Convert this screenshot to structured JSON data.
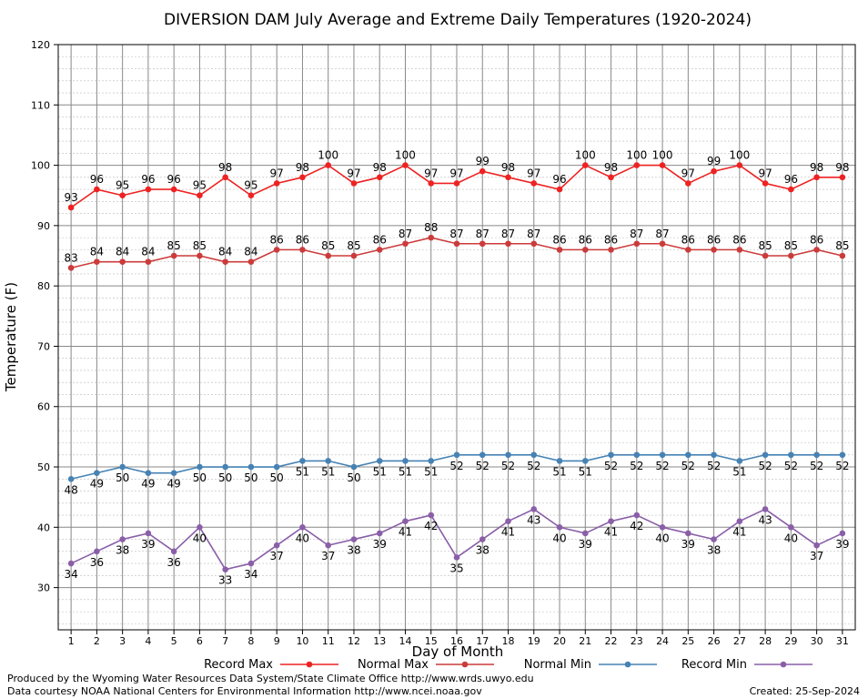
{
  "chart_data": {
    "type": "line",
    "title": "DIVERSION DAM July Average and Extreme Daily Temperatures (1920-2024)",
    "xlabel": "Day of Month",
    "ylabel": "Temperature (F)",
    "xlim": [
      0.5,
      31.5
    ],
    "ylim": [
      23,
      120
    ],
    "yticks": [
      30,
      40,
      50,
      60,
      70,
      80,
      90,
      100,
      110,
      120
    ],
    "x": [
      1,
      2,
      3,
      4,
      5,
      6,
      7,
      8,
      9,
      10,
      11,
      12,
      13,
      14,
      15,
      16,
      17,
      18,
      19,
      20,
      21,
      22,
      23,
      24,
      25,
      26,
      27,
      28,
      29,
      30,
      31
    ],
    "grid": true,
    "legend_position": "bottom",
    "series": [
      {
        "name": "Record Max",
        "color": "#ee2222",
        "label_position": "above",
        "values": [
          93,
          96,
          95,
          96,
          96,
          95,
          98,
          95,
          97,
          98,
          100,
          97,
          98,
          100,
          97,
          97,
          99,
          98,
          97,
          96,
          100,
          98,
          100,
          100,
          97,
          99,
          100,
          97,
          96,
          98,
          98
        ]
      },
      {
        "name": "Normal Max",
        "color": "#cc3b3b",
        "label_position": "above",
        "values": [
          83,
          84,
          84,
          84,
          85,
          85,
          84,
          84,
          86,
          86,
          85,
          85,
          86,
          87,
          88,
          87,
          87,
          87,
          87,
          86,
          86,
          86,
          87,
          87,
          86,
          86,
          86,
          85,
          85,
          86,
          85
        ]
      },
      {
        "name": "Normal Min",
        "color": "#4682b4",
        "label_position": "below",
        "values": [
          48,
          49,
          50,
          49,
          49,
          50,
          50,
          50,
          50,
          51,
          51,
          50,
          51,
          51,
          51,
          52,
          52,
          52,
          52,
          51,
          51,
          52,
          52,
          52,
          52,
          52,
          51,
          52,
          52,
          52,
          52
        ]
      },
      {
        "name": "Record Min",
        "color": "#8a5fa8",
        "label_position": "below",
        "values": [
          34,
          36,
          38,
          39,
          36,
          40,
          33,
          34,
          37,
          40,
          37,
          38,
          39,
          41,
          42,
          35,
          38,
          41,
          43,
          40,
          39,
          41,
          42,
          40,
          39,
          38,
          41,
          43,
          40,
          37,
          39
        ]
      }
    ]
  },
  "footer": {
    "produced_by": "Produced by the Wyoming Water Resources Data System/State Climate Office http://www.wrds.uwyo.edu",
    "courtesy": "Data courtesy NOAA National Centers for Environmental Information http://www.ncei.noaa.gov",
    "created": "Created:  25-Sep-2024"
  }
}
